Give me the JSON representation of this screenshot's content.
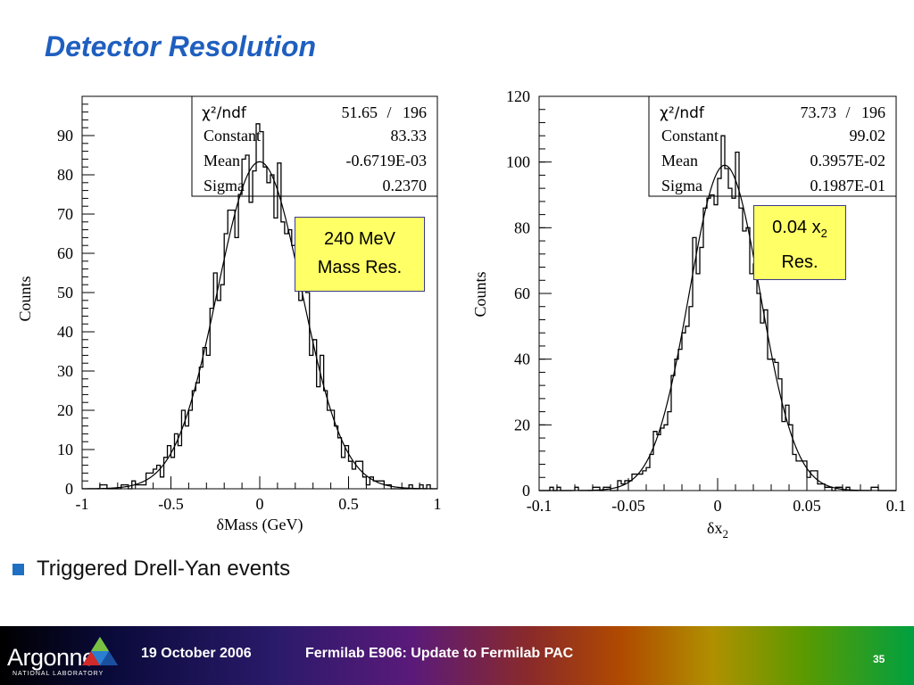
{
  "slide": {
    "title": "Detector Resolution",
    "bullet": "Triggered Drell-Yan events",
    "accent_color": "#1f5fbf"
  },
  "footer": {
    "logo_text": "Argonne",
    "logo_subtext": "NATIONAL LABORATORY",
    "date": "19 October 2006",
    "title": "Fermilab E906:  Update to Fermilab PAC",
    "page_number": "35"
  },
  "callouts": {
    "left": {
      "line1": "240 MeV",
      "line2": "Mass Res."
    },
    "right": {
      "line1_main": "0.04 x",
      "line1_sub": "2",
      "line2": "Res."
    }
  },
  "chart_data": [
    {
      "type": "histogram",
      "xlabel": "δMass (GeV)",
      "ylabel": "Counts",
      "xlim": [
        -1,
        1
      ],
      "ylim": [
        0,
        100
      ],
      "xticks": [
        "-1",
        "-0.5",
        "0",
        "0.5",
        "1"
      ],
      "yticks": [
        "0",
        "10",
        "20",
        "30",
        "40",
        "50",
        "60",
        "70",
        "80",
        "90"
      ],
      "stats": {
        "chi2ndf_label": "χ²/ndf",
        "chi2": "51.65",
        "sep": "/",
        "ndf": "196",
        "rows": [
          {
            "label": "Constant",
            "value": "83.33"
          },
          {
            "label": "Mean",
            "value": "-0.6719E-03"
          },
          {
            "label": "Sigma",
            "value": "0.2370"
          }
        ]
      },
      "fit": {
        "constant": 83.33,
        "mean": -0.0006719,
        "sigma": 0.237
      },
      "bin_count": 100
    },
    {
      "type": "histogram",
      "xlabel": "δx",
      "xlabel_sub": "2",
      "ylabel": "Counts",
      "xlim": [
        -0.1,
        0.1
      ],
      "ylim": [
        0,
        120
      ],
      "xticks": [
        "-0.1",
        "-0.05",
        "0",
        "0.05",
        "0.1"
      ],
      "yticks": [
        "0",
        "20",
        "40",
        "60",
        "80",
        "100",
        "120"
      ],
      "stats": {
        "chi2ndf_label": "χ²/ndf",
        "chi2": "73.73",
        "sep": "/",
        "ndf": "196",
        "rows": [
          {
            "label": "Constant",
            "value": "99.02"
          },
          {
            "label": "Mean",
            "value": "0.3957E-02"
          },
          {
            "label": "Sigma",
            "value": "0.1987E-01"
          }
        ]
      },
      "fit": {
        "constant": 99.02,
        "mean": 0.003957,
        "sigma": 0.01987
      },
      "bin_count": 100
    }
  ]
}
